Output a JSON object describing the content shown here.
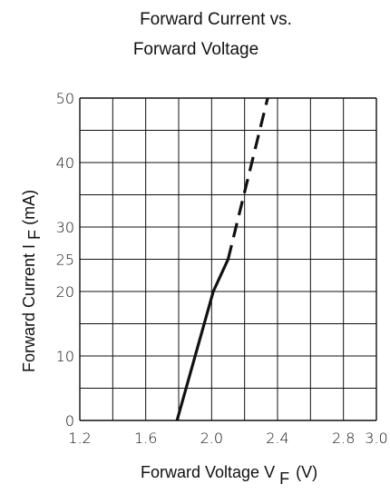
{
  "chart_data": {
    "type": "line",
    "title_lines": [
      "Forward Current vs.",
      "Forward Voltage"
    ],
    "xlabel": {
      "prefix": "Forward Voltage  V",
      "subscript": "F",
      "suffix": "(V)"
    },
    "ylabel": {
      "prefix": "Forward Current I",
      "subscript": "F",
      "suffix": "(mA)"
    },
    "xlim": [
      1.2,
      3.0
    ],
    "ylim": [
      0,
      50
    ],
    "x_ticks": [
      1.2,
      1.6,
      2.0,
      2.4,
      2.8,
      3.0
    ],
    "x_tick_labels": [
      "1.2",
      "1.6",
      "2.0",
      "2.4",
      "2.8",
      "3.0"
    ],
    "y_ticks": [
      0,
      10,
      20,
      25,
      30,
      40,
      50
    ],
    "y_tick_labels": [
      "0",
      "10",
      "20",
      "25",
      "30",
      "40",
      "50"
    ],
    "grid": true,
    "series": [
      {
        "style": "solid",
        "color": "#111111",
        "x": [
          1.79,
          2.01,
          2.1
        ],
        "y": [
          0,
          20,
          25
        ]
      },
      {
        "style": "dashed",
        "color": "#111111",
        "x": [
          2.1,
          2.34
        ],
        "y": [
          25,
          50
        ]
      }
    ]
  }
}
